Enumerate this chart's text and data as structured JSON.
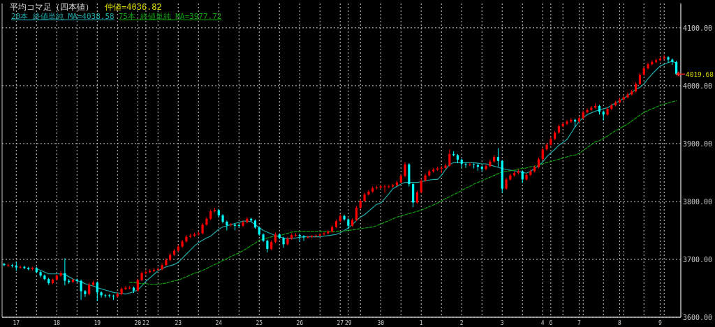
{
  "chart_data": {
    "type": "candlestick",
    "title": "平均コマ足（四本値）",
    "annotations": [
      "仲値=4036.82",
      "4019.68"
    ],
    "categories": [
      null,
      null,
      null,
      "17",
      null,
      null,
      null,
      null,
      null,
      null,
      null,
      null,
      null,
      "18",
      null,
      null,
      null,
      null,
      null,
      null,
      null,
      null,
      null,
      "19",
      null,
      null,
      null,
      null,
      null,
      null,
      null,
      null,
      null,
      "20",
      null,
      "22",
      null,
      null,
      null,
      null,
      null,
      null,
      null,
      "23",
      null,
      null,
      null,
      null,
      null,
      null,
      null,
      null,
      null,
      "24",
      null,
      null,
      null,
      null,
      null,
      null,
      null,
      null,
      null,
      "25",
      null,
      null,
      null,
      null,
      null,
      null,
      null,
      null,
      null,
      "26",
      null,
      null,
      null,
      null,
      null,
      null,
      null,
      null,
      null,
      "27",
      null,
      "29",
      null,
      null,
      null,
      null,
      null,
      null,
      null,
      "30",
      null,
      null,
      null,
      null,
      null,
      null,
      null,
      null,
      null,
      "1",
      null,
      null,
      null,
      null,
      null,
      null,
      null,
      null,
      null,
      "2",
      null,
      null,
      null,
      null,
      null,
      null,
      null,
      null,
      null,
      "3",
      null,
      null,
      null,
      null,
      null,
      null,
      null,
      null,
      null,
      "4",
      null,
      "6",
      null,
      null,
      null,
      null,
      null,
      null,
      "7",
      null,
      null,
      null,
      null,
      null,
      null,
      null,
      null,
      null,
      "8",
      null,
      null,
      null,
      null,
      null,
      null,
      null,
      null,
      null,
      "9",
      null,
      null,
      null,
      null
    ],
    "ohlc": [
      [
        3692,
        3694,
        3688,
        3690
      ],
      [
        3690,
        3693,
        3687,
        3690
      ],
      [
        3690,
        3692,
        3686,
        3689
      ],
      [
        3689,
        3696,
        3680,
        3686
      ],
      [
        3686,
        3689,
        3684,
        3687
      ],
      [
        3687,
        3689,
        3683,
        3685
      ],
      [
        3685,
        3687,
        3681,
        3683
      ],
      [
        3683,
        3687,
        3681,
        3685
      ],
      [
        3685,
        3687,
        3676,
        3678
      ],
      [
        3678,
        3680,
        3669,
        3672
      ],
      [
        3672,
        3674,
        3664,
        3666
      ],
      [
        3666,
        3668,
        3656,
        3659
      ],
      [
        3659,
        3667,
        3657,
        3665
      ],
      [
        3665,
        3674,
        3663,
        3672
      ],
      [
        3672,
        3679,
        3670,
        3676
      ],
      [
        3676,
        3702,
        3655,
        3663
      ],
      [
        3663,
        3666,
        3658,
        3661
      ],
      [
        3661,
        3667,
        3659,
        3665
      ],
      [
        3665,
        3667,
        3660,
        3663
      ],
      [
        3663,
        3665,
        3630,
        3645
      ],
      [
        3645,
        3647,
        3635,
        3640
      ],
      [
        3640,
        3660,
        3638,
        3656
      ],
      [
        3656,
        3663,
        3654,
        3660
      ],
      [
        3660,
        3662,
        3628,
        3643
      ],
      [
        3643,
        3645,
        3634,
        3638
      ],
      [
        3638,
        3640,
        3634,
        3637
      ],
      [
        3638,
        3640,
        3634,
        3637
      ],
      [
        3637,
        3639,
        3630,
        3636
      ],
      [
        3636,
        3643,
        3634,
        3640
      ],
      [
        3640,
        3652,
        3638,
        3649
      ],
      [
        3649,
        3654,
        3647,
        3651
      ],
      [
        3650,
        3654,
        3648,
        3651
      ],
      [
        3651,
        3653,
        3642,
        3646
      ],
      [
        3646,
        3667,
        3644,
        3664
      ],
      [
        3664,
        3679,
        3662,
        3676
      ],
      [
        3676,
        3681,
        3674,
        3678
      ],
      [
        3678,
        3683,
        3676,
        3680
      ],
      [
        3680,
        3685,
        3678,
        3682
      ],
      [
        3682,
        3686,
        3680,
        3683
      ],
      [
        3683,
        3693,
        3681,
        3690
      ],
      [
        3690,
        3702,
        3688,
        3699
      ],
      [
        3699,
        3711,
        3697,
        3708
      ],
      [
        3708,
        3718,
        3706,
        3715
      ],
      [
        3715,
        3725,
        3713,
        3722
      ],
      [
        3722,
        3734,
        3720,
        3731
      ],
      [
        3731,
        3742,
        3729,
        3739
      ],
      [
        3739,
        3744,
        3737,
        3741
      ],
      [
        3741,
        3746,
        3739,
        3743
      ],
      [
        3743,
        3748,
        3741,
        3745
      ],
      [
        3745,
        3763,
        3743,
        3760
      ],
      [
        3760,
        3773,
        3758,
        3770
      ],
      [
        3770,
        3786,
        3768,
        3783
      ],
      [
        3783,
        3789,
        3781,
        3785
      ],
      [
        3785,
        3787,
        3773,
        3776
      ],
      [
        3776,
        3778,
        3762,
        3765
      ],
      [
        3765,
        3767,
        3750,
        3759
      ],
      [
        3759,
        3763,
        3757,
        3760
      ],
      [
        3760,
        3762,
        3750,
        3758
      ],
      [
        3759,
        3761,
        3755,
        3758
      ],
      [
        3758,
        3767,
        3756,
        3764
      ],
      [
        3764,
        3773,
        3762,
        3770
      ],
      [
        3770,
        3772,
        3765,
        3767
      ],
      [
        3767,
        3769,
        3753,
        3755
      ],
      [
        3755,
        3757,
        3741,
        3743
      ],
      [
        3743,
        3745,
        3730,
        3732
      ],
      [
        3732,
        3734,
        3712,
        3718
      ],
      [
        3718,
        3733,
        3716,
        3730
      ],
      [
        3730,
        3746,
        3728,
        3743
      ],
      [
        3743,
        3745,
        3735,
        3737
      ],
      [
        3737,
        3739,
        3720,
        3726
      ],
      [
        3726,
        3739,
        3724,
        3736
      ],
      [
        3736,
        3745,
        3734,
        3742
      ],
      [
        3741,
        3745,
        3739,
        3742
      ],
      [
        3742,
        3744,
        3730,
        3740
      ],
      [
        3740,
        3742,
        3732,
        3738
      ],
      [
        3738,
        3741,
        3736,
        3739
      ],
      [
        3739,
        3742,
        3737,
        3740
      ],
      [
        3740,
        3743,
        3738,
        3741
      ],
      [
        3741,
        3745,
        3739,
        3743
      ],
      [
        3743,
        3747,
        3741,
        3745
      ],
      [
        3745,
        3750,
        3743,
        3748
      ],
      [
        3748,
        3759,
        3746,
        3756
      ],
      [
        3756,
        3769,
        3754,
        3766
      ],
      [
        3766,
        3778,
        3764,
        3775
      ],
      [
        3775,
        3777,
        3767,
        3769
      ],
      [
        3769,
        3771,
        3752,
        3758
      ],
      [
        3758,
        3771,
        3756,
        3768
      ],
      [
        3768,
        3792,
        3766,
        3789
      ],
      [
        3789,
        3804,
        3787,
        3801
      ],
      [
        3801,
        3815,
        3799,
        3812
      ],
      [
        3812,
        3820,
        3810,
        3817
      ],
      [
        3817,
        3826,
        3815,
        3823
      ],
      [
        3823,
        3827,
        3821,
        3824
      ],
      [
        3824,
        3829,
        3822,
        3826
      ],
      [
        3825,
        3829,
        3815,
        3826
      ],
      [
        3825,
        3829,
        3823,
        3826
      ],
      [
        3826,
        3830,
        3824,
        3828
      ],
      [
        3828,
        3836,
        3826,
        3833
      ],
      [
        3833,
        3847,
        3831,
        3844
      ],
      [
        3844,
        3868,
        3842,
        3864
      ],
      [
        3864,
        3866,
        3826,
        3830
      ],
      [
        3830,
        3832,
        3790,
        3798
      ],
      [
        3798,
        3819,
        3796,
        3816
      ],
      [
        3816,
        3839,
        3814,
        3836
      ],
      [
        3836,
        3848,
        3834,
        3845
      ],
      [
        3845,
        3855,
        3843,
        3852
      ],
      [
        3852,
        3858,
        3850,
        3855
      ],
      [
        3855,
        3860,
        3853,
        3857
      ],
      [
        3857,
        3861,
        3849,
        3858
      ],
      [
        3858,
        3865,
        3856,
        3862
      ],
      [
        3862,
        3890,
        3860,
        3882
      ],
      [
        3882,
        3887,
        3878,
        3880
      ],
      [
        3880,
        3882,
        3866,
        3872
      ],
      [
        3872,
        3874,
        3858,
        3865
      ],
      [
        3865,
        3867,
        3858,
        3864
      ],
      [
        3863,
        3867,
        3861,
        3864
      ],
      [
        3864,
        3866,
        3857,
        3863
      ],
      [
        3863,
        3865,
        3853,
        3860
      ],
      [
        3860,
        3862,
        3852,
        3856
      ],
      [
        3856,
        3864,
        3854,
        3861
      ],
      [
        3861,
        3872,
        3859,
        3869
      ],
      [
        3869,
        3880,
        3867,
        3877
      ],
      [
        3877,
        3892,
        3860,
        3870
      ],
      [
        3870,
        3872,
        3815,
        3822
      ],
      [
        3822,
        3841,
        3820,
        3838
      ],
      [
        3838,
        3848,
        3836,
        3845
      ],
      [
        3845,
        3852,
        3843,
        3849
      ],
      [
        3849,
        3855,
        3847,
        3852
      ],
      [
        3852,
        3854,
        3832,
        3838
      ],
      [
        3838,
        3849,
        3836,
        3846
      ],
      [
        3846,
        3855,
        3844,
        3852
      ],
      [
        3852,
        3862,
        3850,
        3859
      ],
      [
        3859,
        3876,
        3857,
        3873
      ],
      [
        3873,
        3893,
        3871,
        3890
      ],
      [
        3890,
        3901,
        3888,
        3898
      ],
      [
        3898,
        3911,
        3896,
        3908
      ],
      [
        3908,
        3922,
        3906,
        3919
      ],
      [
        3919,
        3933,
        3917,
        3930
      ],
      [
        3930,
        3937,
        3928,
        3934
      ],
      [
        3934,
        3941,
        3932,
        3938
      ],
      [
        3938,
        3944,
        3936,
        3941
      ],
      [
        3941,
        3943,
        3928,
        3938
      ],
      [
        3938,
        3947,
        3936,
        3944
      ],
      [
        3944,
        3957,
        3942,
        3954
      ],
      [
        3954,
        3961,
        3952,
        3958
      ],
      [
        3958,
        3965,
        3956,
        3962
      ],
      [
        3962,
        3970,
        3960,
        3965
      ],
      [
        3965,
        3967,
        3950,
        3955
      ],
      [
        3955,
        3957,
        3940,
        3950
      ],
      [
        3950,
        3963,
        3948,
        3960
      ],
      [
        3960,
        3969,
        3958,
        3966
      ],
      [
        3966,
        3974,
        3964,
        3971
      ],
      [
        3971,
        3979,
        3969,
        3976
      ],
      [
        3976,
        3983,
        3974,
        3980
      ],
      [
        3980,
        3988,
        3978,
        3985
      ],
      [
        3985,
        3993,
        3983,
        3990
      ],
      [
        3990,
        4006,
        3988,
        4003
      ],
      [
        4003,
        4022,
        4001,
        4019
      ],
      [
        4019,
        4033,
        4017,
        4030
      ],
      [
        4030,
        4040,
        4028,
        4037
      ],
      [
        4037,
        4044,
        4035,
        4041
      ],
      [
        4041,
        4047,
        4039,
        4044
      ],
      [
        4044,
        4050,
        4042,
        4047
      ],
      [
        4047,
        4053,
        4045,
        4049
      ],
      [
        4049,
        4051,
        4040,
        4045
      ],
      [
        4045,
        4047,
        4036,
        4041
      ],
      [
        4041,
        4043,
        4018,
        4020
      ]
    ],
    "colors": [
      "#00ffff",
      "#ff0000",
      "#00ffff",
      "#00ffff",
      "#ff0000",
      "#00ffff",
      "#00ffff",
      "#ff0000",
      "#00ffff",
      "#00ffff",
      "#00ffff",
      "#00ffff",
      "#ff0000",
      "#ff0000",
      "#ff0000",
      "#00ffff",
      "#00ffff",
      "#ff0000",
      "#00ffff",
      "#00ffff",
      "#00ffff",
      "#ff0000",
      "#ff0000",
      "#00ffff",
      "#00ffff",
      "#00ffff",
      "#00ffff",
      "#00ffff",
      "#ff0000",
      "#ff0000",
      "#ff0000",
      "#ff0000",
      "#00ffff",
      "#ff0000",
      "#ff0000",
      "#ff0000",
      "#ff0000",
      "#ff0000",
      "#ff0000",
      "#ff0000",
      "#ff0000",
      "#ff0000",
      "#ff0000",
      "#ff0000",
      "#ff0000",
      "#ff0000",
      "#ff0000",
      "#ff0000",
      "#ff0000",
      "#ff0000",
      "#ff0000",
      "#ff0000",
      "#ff0000",
      "#00ffff",
      "#00ffff",
      "#00ffff",
      "#ff0000",
      "#00ffff",
      "#00ffff",
      "#ff0000",
      "#ff0000",
      "#00ffff",
      "#00ffff",
      "#00ffff",
      "#00ffff",
      "#00ffff",
      "#ff0000",
      "#ff0000",
      "#00ffff",
      "#00ffff",
      "#ff0000",
      "#ff0000",
      "#ff0000",
      "#00ffff",
      "#00ffff",
      "#ff0000",
      "#ff0000",
      "#ff0000",
      "#ff0000",
      "#ff0000",
      "#ff0000",
      "#ff0000",
      "#ff0000",
      "#ff0000",
      "#00ffff",
      "#00ffff",
      "#ff0000",
      "#ff0000",
      "#ff0000",
      "#ff0000",
      "#ff0000",
      "#ff0000",
      "#ff0000",
      "#ff0000",
      "#ff0000",
      "#ff0000",
      "#ff0000",
      "#ff0000",
      "#ff0000",
      "#ff0000",
      "#00ffff",
      "#00ffff",
      "#ff0000",
      "#ff0000",
      "#ff0000",
      "#ff0000",
      "#ff0000",
      "#ff0000",
      "#ff0000",
      "#ff0000",
      "#ff0000",
      "#00ffff",
      "#00ffff",
      "#00ffff",
      "#00ffff",
      "#ff0000",
      "#00ffff",
      "#00ffff",
      "#00ffff",
      "#ff0000",
      "#ff0000",
      "#ff0000",
      "#00ffff",
      "#00ffff",
      "#ff0000",
      "#ff0000",
      "#ff0000",
      "#ff0000",
      "#00ffff",
      "#ff0000",
      "#ff0000",
      "#ff0000",
      "#ff0000",
      "#ff0000",
      "#ff0000",
      "#ff0000",
      "#ff0000",
      "#ff0000",
      "#ff0000",
      "#ff0000",
      "#ff0000",
      "#00ffff",
      "#ff0000",
      "#ff0000",
      "#ff0000",
      "#ff0000",
      "#ff0000",
      "#00ffff",
      "#00ffff",
      "#ff0000",
      "#ff0000",
      "#ff0000",
      "#ff0000",
      "#ff0000",
      "#ff0000",
      "#ff0000",
      "#ff0000",
      "#ff0000",
      "#ff0000",
      "#ff0000",
      "#ff0000",
      "#ff0000",
      "#ff0000",
      "#ff0000",
      "#00ffff",
      "#00ffff",
      "#00ffff"
    ],
    "series": [
      {
        "name": "20本 終値単純 MA=4038.58",
        "color": "#20a8a8",
        "type": "line",
        "line_style": "solid",
        "values": [
          null,
          null,
          null,
          null,
          null,
          null,
          null,
          null,
          3684,
          3681,
          3678,
          3675,
          3675,
          3675,
          3675,
          3674,
          3670,
          3666,
          3663,
          3661,
          3658,
          3656,
          3654,
          3651,
          3649,
          3647,
          3645,
          3643,
          3642,
          3641,
          3640,
          3642,
          3644,
          3647,
          3654,
          3662,
          3668,
          3674,
          3680,
          3684,
          3687,
          3689,
          3691,
          3695,
          3702,
          3709,
          3716,
          3723,
          3729,
          3733,
          3737,
          3740,
          3746,
          3752,
          3756,
          3758,
          3760,
          3762,
          3764,
          3766,
          3766,
          3765,
          3760,
          3755,
          3750,
          3747,
          3744,
          3741,
          3739,
          3737,
          3736,
          3736,
          3737,
          3738,
          3739,
          3739,
          3739,
          3739,
          3739,
          3740,
          3741,
          3742,
          3743,
          3746,
          3750,
          3754,
          3760,
          3767,
          3773,
          3777,
          3783,
          3789,
          3795,
          3797,
          3805,
          3813,
          3822,
          3826,
          3830,
          3833,
          3833,
          3833,
          3833,
          3834,
          3836,
          3837,
          3838,
          3838,
          3845,
          3855,
          3864,
          3867,
          3867,
          3867,
          3867,
          3867,
          3867,
          3866,
          3865,
          3865,
          3863,
          3861,
          3859,
          3857,
          3855,
          3854,
          3853,
          3852,
          3850,
          3849,
          3852,
          3857,
          3862,
          3868,
          3877,
          3884,
          3890,
          3897,
          3902,
          3907,
          3918,
          3929,
          3938,
          3945,
          3950,
          3953,
          3956,
          3958,
          3960,
          3962,
          3966,
          3970,
          3974,
          3978,
          3983,
          3988,
          3994,
          3997,
          4003,
          4012,
          4020,
          4027,
          4034,
          4037,
          4040,
          4042,
          4039
        ]
      },
      {
        "name": "75本 終値単純 MA=3977.72",
        "color": "#10a010",
        "type": "line",
        "line_style": "dashed",
        "values": [
          null,
          null,
          null,
          null,
          null,
          null,
          null,
          null,
          null,
          null,
          null,
          null,
          null,
          null,
          null,
          null,
          null,
          null,
          null,
          null,
          null,
          null,
          null,
          null,
          null,
          null,
          null,
          null,
          null,
          null,
          null,
          3660,
          3660,
          3659,
          3658,
          3658,
          3657,
          3657,
          3657,
          3658,
          3659,
          3661,
          3663,
          3664,
          3667,
          3670,
          3673,
          3676,
          3678,
          3681,
          3684,
          3688,
          3691,
          3694,
          3698,
          3701,
          3705,
          3708,
          3711,
          3715,
          3719,
          3724,
          3728,
          3733,
          3735,
          3737,
          3739,
          3740,
          3741,
          3743,
          3745,
          3747,
          3748,
          3748,
          3748,
          3748,
          3748,
          3748,
          3748,
          3748,
          3748,
          3748,
          3748,
          3748,
          3749,
          3750,
          3751,
          3752,
          3753,
          3754,
          3755,
          3756,
          3758,
          3761,
          3764,
          3767,
          3770,
          3773,
          3775,
          3777,
          3779,
          3781,
          3783,
          3785,
          3788,
          3791,
          3794,
          3797,
          3801,
          3805,
          3808,
          3812,
          3815,
          3819,
          3823,
          3826,
          3830,
          3833,
          3836,
          3839,
          3842,
          3845,
          3848,
          3851,
          3852,
          3853,
          3854,
          3856,
          3857,
          3858,
          3860,
          3861,
          3863,
          3865,
          3867,
          3869,
          3871,
          3873,
          3875,
          3877,
          3879,
          3880,
          3883,
          3888,
          3893,
          3898,
          3903,
          3905,
          3909,
          3913,
          3918,
          3922,
          3926,
          3930,
          3934,
          3939,
          3944,
          3949,
          3954,
          3957,
          3960,
          3963,
          3966,
          3968,
          3970,
          3972,
          3974
        ]
      }
    ],
    "ylim": [
      3600,
      4142
    ],
    "yticks": [
      {
        "value": 3600,
        "label": "3600.00"
      },
      {
        "value": 3700,
        "label": "3700.00"
      },
      {
        "value": 3800,
        "label": "3800.00"
      },
      {
        "value": 3900,
        "label": "3900.00"
      },
      {
        "value": 4000,
        "label": "4000.00"
      },
      {
        "value": 4100,
        "label": "4100.00"
      }
    ],
    "grid": true,
    "legend": "top left"
  }
}
